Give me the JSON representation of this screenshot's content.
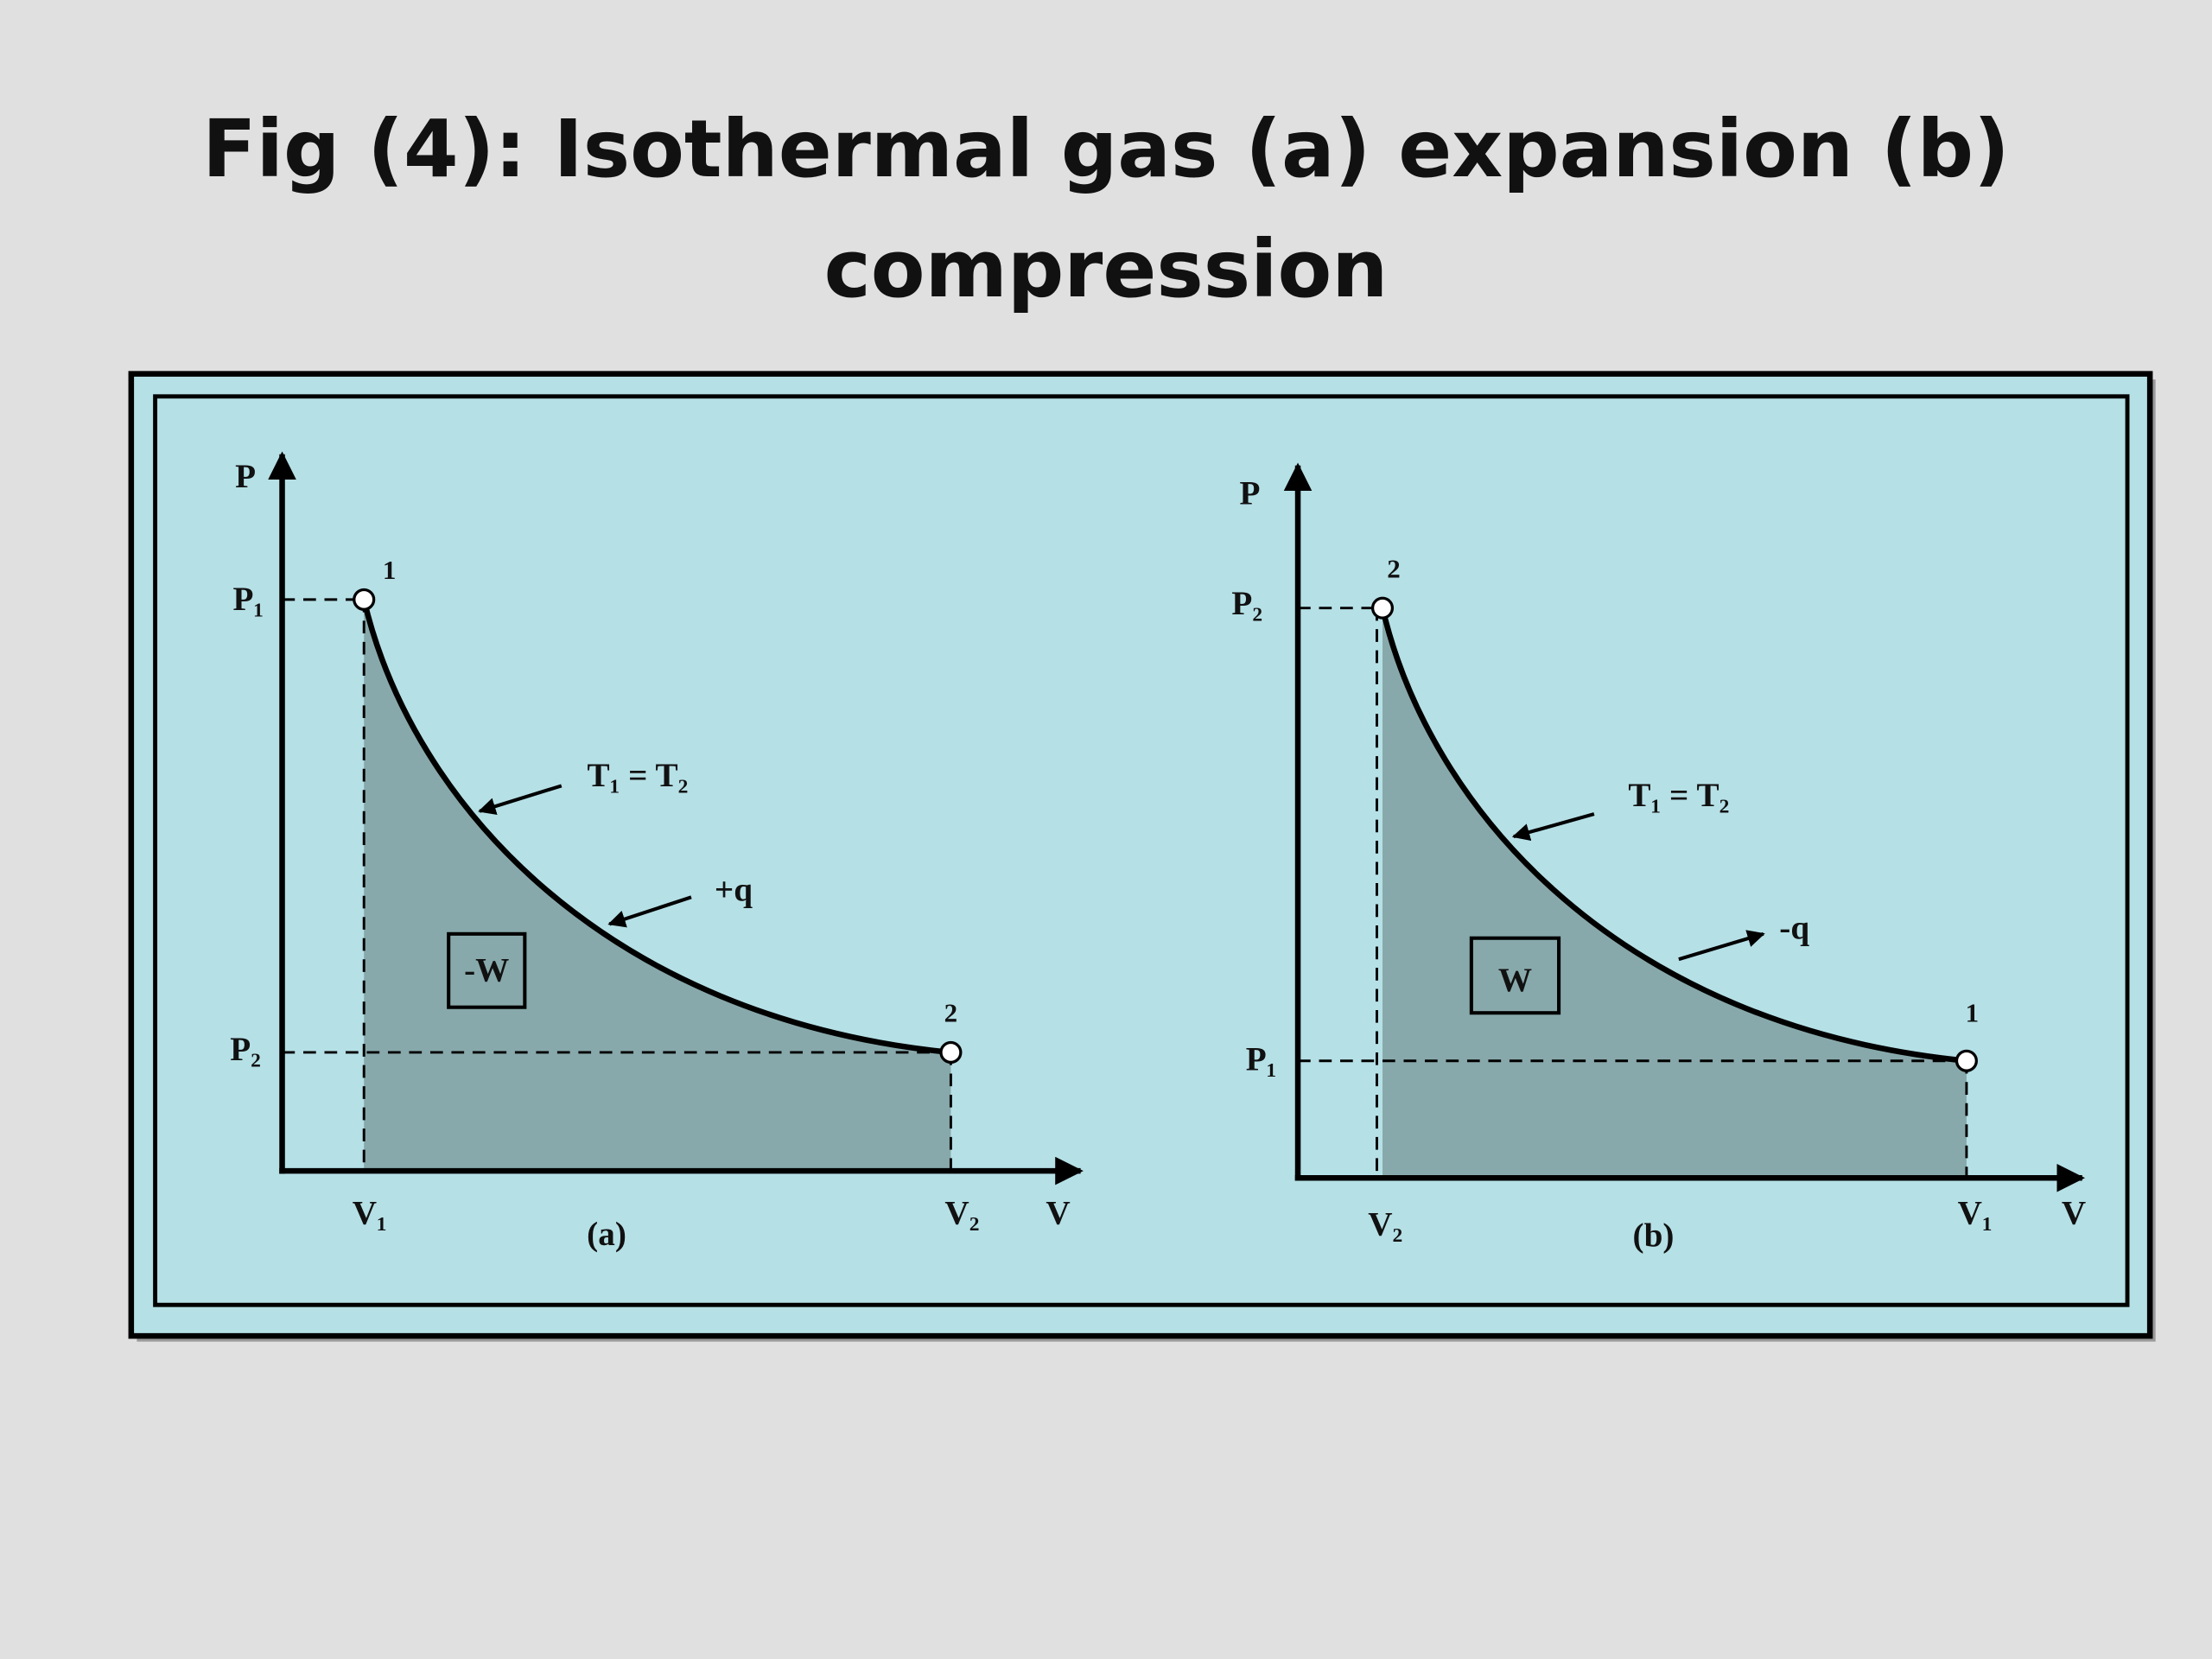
{
  "title": {
    "lines": [
      "Fig (4): Isothermal gas (a) expansion (b)",
      "compression"
    ]
  },
  "panels": [
    {
      "caption": "(a)",
      "p_axis": "P",
      "v_axis": "V",
      "p_top": "P₁",
      "p_bottom": "P₂",
      "v_left": "V₁",
      "v_right": "V₂",
      "point_top": "1",
      "point_bottom": "2",
      "curve_label": "T₁ = T₂",
      "heat_label": "+q",
      "work_label": "-W"
    },
    {
      "caption": "(b)",
      "p_axis": "P",
      "v_axis": "V",
      "p_top": "P₂",
      "p_bottom": "P₁",
      "v_left": "V₂",
      "v_right": "V₁",
      "point_top": "2",
      "point_bottom": "1",
      "curve_label": "T₁ = T₂",
      "heat_label": "-q",
      "work_label": "W"
    }
  ]
}
